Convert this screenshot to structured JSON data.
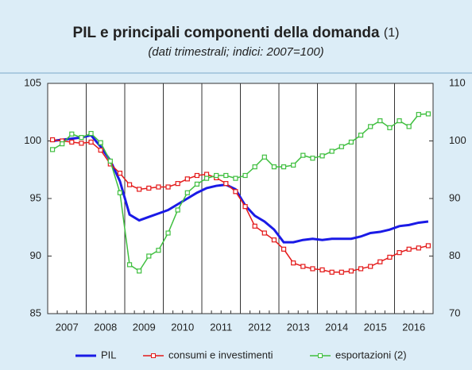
{
  "chart_data": {
    "type": "line",
    "title": "PIL e principali componenti della domanda",
    "title_note": "(1)",
    "subtitle": "(dati trimestrali; indici: 2007=100)",
    "categories": [
      null,
      "2007",
      null,
      null,
      null,
      "2008",
      null,
      null,
      null,
      "2009",
      null,
      null,
      null,
      "2010",
      null,
      null,
      null,
      "2011",
      null,
      null,
      null,
      "2012",
      null,
      null,
      null,
      "2013",
      null,
      null,
      null,
      "2014",
      null,
      null,
      null,
      "2015",
      null,
      null,
      null,
      "2016",
      null,
      null
    ],
    "ylim": [
      85,
      105
    ],
    "yticks": [
      85,
      90,
      95,
      100,
      105
    ],
    "y2lim": [
      70,
      110
    ],
    "y2ticks": [
      70,
      80,
      90,
      100,
      110
    ],
    "series": [
      {
        "name": "PIL",
        "color": "#1a1ae6",
        "values": [
          100.0,
          100.1,
          100.2,
          100.3,
          100.5,
          99.5,
          98.3,
          96.5,
          93.6,
          93.1,
          93.4,
          93.7,
          94.0,
          94.5,
          95.0,
          95.5,
          95.9,
          96.1,
          96.2,
          95.8,
          94.4,
          93.5,
          93.0,
          92.3,
          91.2,
          91.2,
          91.4,
          91.5,
          91.4,
          91.5,
          91.5,
          91.5,
          91.7,
          92.0,
          92.1,
          92.3,
          92.6,
          92.7,
          92.9,
          93.0
        ]
      },
      {
        "name": "consumi e investimenti",
        "color": "#e41a1a",
        "marker": "square",
        "values": [
          100.1,
          100.0,
          99.9,
          99.8,
          99.9,
          99.2,
          98.0,
          97.2,
          96.2,
          95.8,
          95.9,
          96.0,
          96.0,
          96.3,
          96.7,
          97.0,
          97.1,
          96.8,
          96.3,
          95.6,
          94.3,
          92.6,
          92.0,
          91.4,
          90.6,
          89.4,
          89.1,
          88.9,
          88.8,
          88.6,
          88.6,
          88.7,
          88.9,
          89.1,
          89.5,
          89.9,
          90.3,
          90.6,
          90.7,
          90.9
        ]
      },
      {
        "name": "esportazioni (2)",
        "color": "#3fbf3f",
        "marker": "square",
        "axis": "y2",
        "values": [
          98.5,
          99.5,
          101.2,
          100.6,
          101.3,
          99.7,
          96.5,
          91.0,
          78.5,
          77.4,
          80.0,
          81.0,
          84.0,
          88.0,
          91.0,
          92.5,
          93.5,
          94.0,
          94.0,
          93.5,
          94.0,
          95.5,
          97.2,
          95.5,
          95.5,
          95.8,
          97.5,
          97.0,
          97.4,
          98.2,
          99.0,
          99.8,
          101.0,
          102.5,
          103.5,
          102.3,
          103.5,
          102.5,
          104.6,
          104.7
        ]
      }
    ]
  }
}
